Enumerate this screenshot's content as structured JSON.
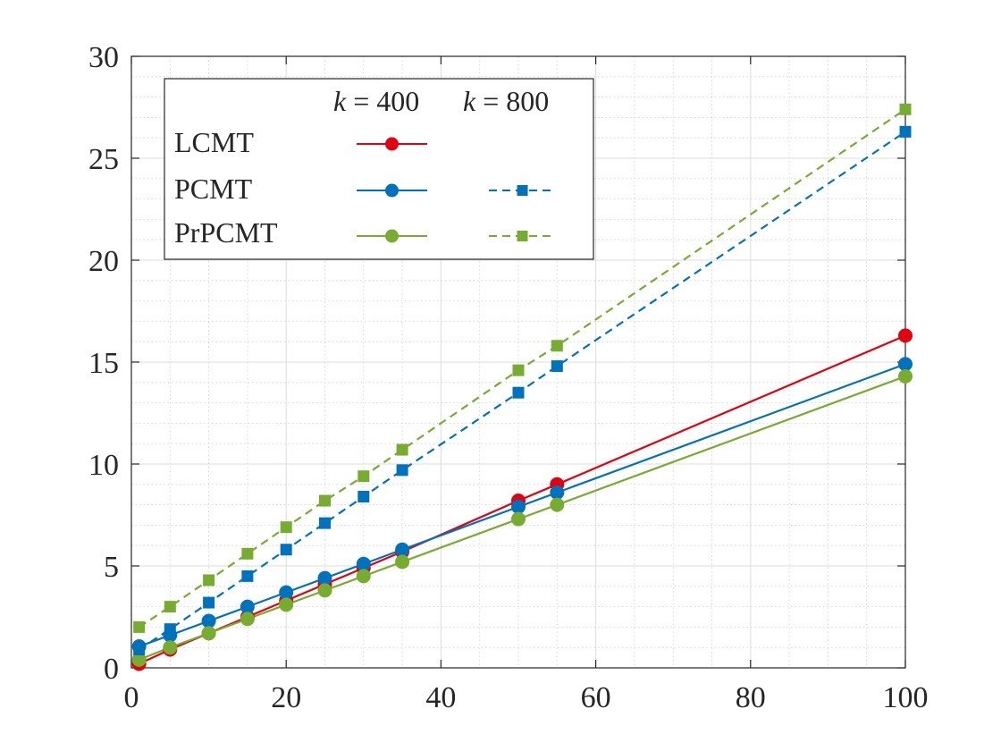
{
  "chart_data": {
    "type": "line",
    "title": "",
    "xlabel": "",
    "ylabel": "",
    "xlim": [
      0,
      100
    ],
    "ylim": [
      0,
      30
    ],
    "x_ticks": [
      "0",
      "20",
      "40",
      "60",
      "80",
      "100"
    ],
    "y_ticks": [
      "0",
      "5",
      "10",
      "15",
      "20",
      "25",
      "30"
    ],
    "grid": "major and minor",
    "legend": {
      "placement": "top-left",
      "col_headers": [
        {
          "var": "k",
          "op": " = ",
          "num": "400"
        },
        {
          "var": "k",
          "op": " = ",
          "num": "800"
        }
      ],
      "rows": [
        "LCMT",
        "PCMT",
        "PrPCMT"
      ]
    },
    "colors": {
      "LCMT": "#e3000f",
      "PCMT": "#0072bd",
      "PrPCMT": "#77ac30"
    },
    "series": [
      {
        "name": "LCMT k=400",
        "method": "LCMT",
        "k": "400",
        "style": "solid",
        "marker": "circle",
        "x": [
          1,
          5,
          10,
          15,
          20,
          25,
          30,
          35,
          50,
          55,
          100
        ],
        "y": [
          0.2,
          0.9,
          1.7,
          2.5,
          3.3,
          4.1,
          4.9,
          5.7,
          8.2,
          9.0,
          16.3
        ]
      },
      {
        "name": "PCMT k=400",
        "method": "PCMT",
        "k": "400",
        "style": "solid",
        "marker": "circle",
        "x": [
          1,
          5,
          10,
          15,
          20,
          25,
          30,
          35,
          50,
          55,
          100
        ],
        "y": [
          1.05,
          1.6,
          2.3,
          3.0,
          3.7,
          4.4,
          5.1,
          5.8,
          7.9,
          8.6,
          14.9
        ]
      },
      {
        "name": "PrPCMT k=400",
        "method": "PrPCMT",
        "k": "400",
        "style": "solid",
        "marker": "circle",
        "x": [
          1,
          5,
          10,
          15,
          20,
          25,
          30,
          35,
          50,
          55,
          100
        ],
        "y": [
          0.4,
          1.0,
          1.7,
          2.4,
          3.1,
          3.8,
          4.5,
          5.2,
          7.3,
          8.0,
          14.3
        ]
      },
      {
        "name": "PCMT k=800",
        "method": "PCMT",
        "k": "800",
        "style": "dashed",
        "marker": "square",
        "x": [
          1,
          5,
          10,
          15,
          20,
          25,
          30,
          35,
          50,
          55,
          100
        ],
        "y": [
          0.9,
          1.9,
          3.2,
          4.5,
          5.8,
          7.1,
          8.4,
          9.7,
          13.5,
          14.8,
          26.3
        ]
      },
      {
        "name": "PrPCMT k=800",
        "method": "PrPCMT",
        "k": "800",
        "style": "dashed",
        "marker": "square",
        "x": [
          1,
          5,
          10,
          15,
          20,
          25,
          30,
          35,
          50,
          55,
          100
        ],
        "y": [
          2.0,
          3.0,
          4.3,
          5.6,
          6.9,
          8.2,
          9.4,
          10.7,
          14.6,
          15.8,
          27.4
        ]
      }
    ]
  }
}
